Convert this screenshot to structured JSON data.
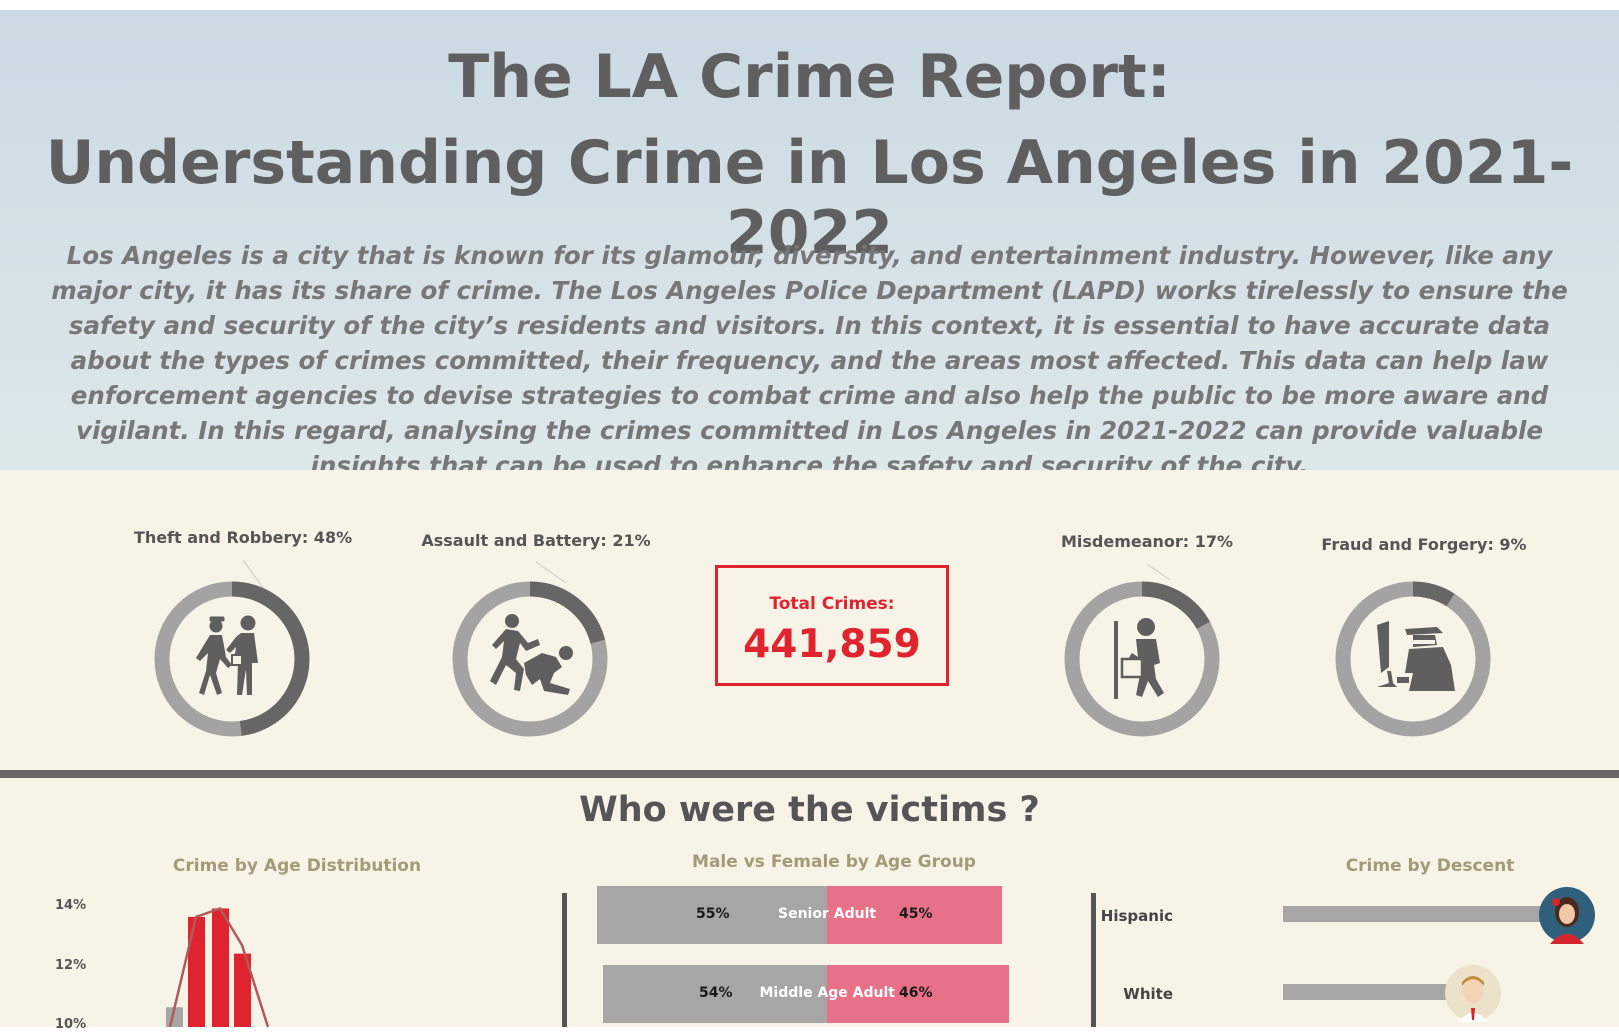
{
  "header": {
    "title_line1": "The LA Crime Report:",
    "title_line2": "Understanding Crime in Los Angeles in 2021-2022",
    "intro": "Los Angeles is a city that is known for its glamour, diversity, and entertainment industry. However, like any major city, it has its share of crime. The Los Angeles Police Department (LAPD) works tirelessly to ensure the safety and security of the city’s residents and visitors. In this context, it is essential to have accurate data about the types of crimes committed, their frequency, and the areas most affected. This data can help law enforcement agencies to devise strategies to combat crime and also help the public to be more aware and vigilant. In this regard, analysing the crimes committed in Los Angeles in 2021-2022 can provide valuable insights that can be used to enhance the safety and security of the city."
  },
  "kpis": {
    "total_label": "Total Crimes:",
    "total_value": "441,859",
    "categories": [
      {
        "label": "Theft and Robbery: 48%",
        "share": 0.48,
        "icon": "theft-icon"
      },
      {
        "label": "Assault and Battery: 21%",
        "share": 0.21,
        "icon": "assault-icon"
      },
      {
        "label": "Misdemeanor: 17%",
        "share": 0.17,
        "icon": "misdemeanor-icon"
      },
      {
        "label": "Fraud and Forgery: 9%",
        "share": 0.09,
        "icon": "fraud-icon"
      }
    ]
  },
  "victims": {
    "title": "Who were the victims ?"
  },
  "colors": {
    "accent_red": "#e0242f",
    "donut_dark": "#666666",
    "donut_light": "#a3a3a3",
    "male": "#a6a6a6",
    "female": "#e8718a",
    "band": "#f8f3e7"
  },
  "chart_data": [
    {
      "type": "pie",
      "title": "",
      "slices": [
        {
          "name": "Theft and Robbery",
          "value": 48
        },
        {
          "name": "Assault and Battery",
          "value": 21
        },
        {
          "name": "Misdemeanor",
          "value": 17
        },
        {
          "name": "Fraud and Forgery",
          "value": 9
        }
      ]
    },
    {
      "type": "bar",
      "title": "Crime by Age Distribution",
      "yticks": [
        "14%",
        "12%",
        "10%"
      ],
      "ylim": [
        10,
        14.5
      ],
      "values": [
        10.7,
        13.9,
        14.2,
        12.6
      ],
      "bar_colors": [
        "#a6a6a6",
        "#e0242f",
        "#e0242f",
        "#e0242f"
      ]
    },
    {
      "type": "bar",
      "title": "Male vs Female by Age Group",
      "categories": [
        "Senior Adult",
        "Middle Age Adult"
      ],
      "series": [
        {
          "values": [
            55,
            54
          ],
          "labels": [
            "55%",
            "54%"
          ]
        },
        {
          "values": [
            45,
            46
          ],
          "labels": [
            "45%",
            "46%"
          ]
        }
      ]
    },
    {
      "type": "bar",
      "title": "Crime by Descent",
      "categories": [
        "Hispanic",
        "White"
      ],
      "values": [
        100,
        63
      ]
    }
  ]
}
